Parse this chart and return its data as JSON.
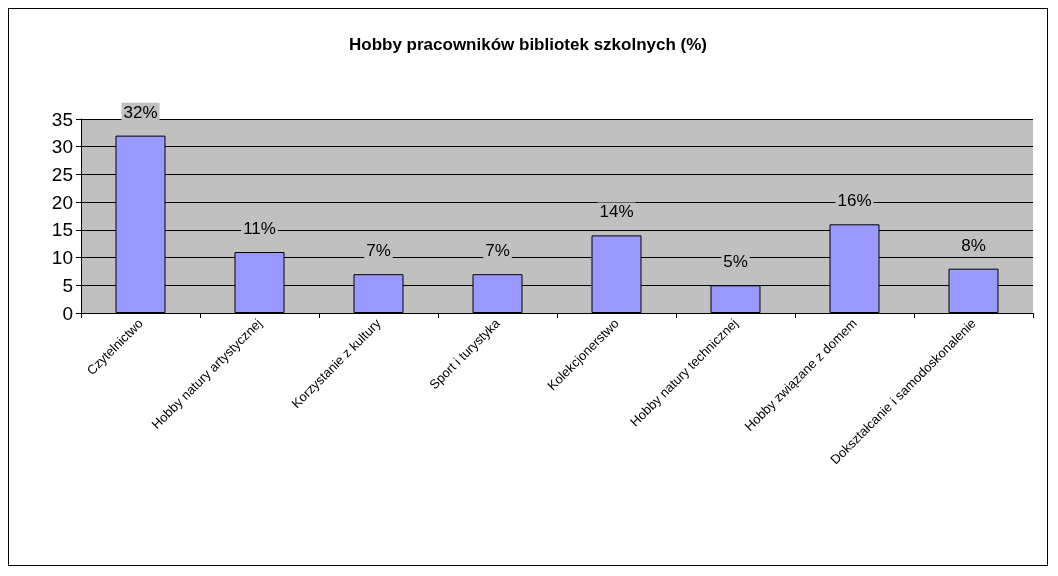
{
  "chart_data": {
    "type": "bar",
    "title": "Hobby pracowników bibliotek szkolnych (%)",
    "categories": [
      "Czytelnictwo",
      "Hobby natury artystycznej",
      "Korzystanie z kultury",
      "Sport i turystyka",
      "Kolekcjonerstwo",
      "Hobby natury technicznej",
      "Hobby związane z domem",
      "Dokształcanie i samodoskonalenie"
    ],
    "values": [
      32,
      11,
      7,
      7,
      14,
      5,
      16,
      8
    ],
    "value_labels": [
      "32%",
      "11%",
      "7%",
      "7%",
      "14%",
      "5%",
      "16%",
      "8%"
    ],
    "color": "#9999ff",
    "ylim": [
      0,
      35
    ],
    "yticks": [
      0,
      5,
      10,
      15,
      20,
      25,
      30,
      35
    ],
    "grid": "y"
  }
}
